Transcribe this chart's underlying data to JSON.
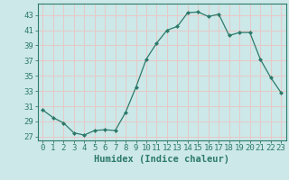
{
  "x": [
    0,
    1,
    2,
    3,
    4,
    5,
    6,
    7,
    8,
    9,
    10,
    11,
    12,
    13,
    14,
    15,
    16,
    17,
    18,
    19,
    20,
    21,
    22,
    23
  ],
  "y": [
    30.5,
    29.5,
    28.8,
    27.5,
    27.2,
    27.8,
    27.9,
    27.8,
    30.2,
    33.5,
    37.2,
    39.3,
    41.0,
    41.5,
    43.3,
    43.4,
    42.8,
    43.1,
    40.3,
    40.7,
    40.7,
    37.2,
    34.8,
    32.8
  ],
  "line_color": "#2d7a6a",
  "marker": "D",
  "marker_size": 2.0,
  "bg_color": "#cce8e8",
  "grid_color": "#e8c8c8",
  "xlabel": "Humidex (Indice chaleur)",
  "ylim": [
    26.5,
    44.5
  ],
  "xlim": [
    -0.5,
    23.5
  ],
  "yticks": [
    27,
    29,
    31,
    33,
    35,
    37,
    39,
    41,
    43
  ],
  "xticks": [
    0,
    1,
    2,
    3,
    4,
    5,
    6,
    7,
    8,
    9,
    10,
    11,
    12,
    13,
    14,
    15,
    16,
    17,
    18,
    19,
    20,
    21,
    22,
    23
  ],
  "tick_color": "#2d7a6a",
  "label_fontsize": 6.5,
  "xlabel_fontsize": 7.5,
  "spine_color": "#2d7a6a"
}
